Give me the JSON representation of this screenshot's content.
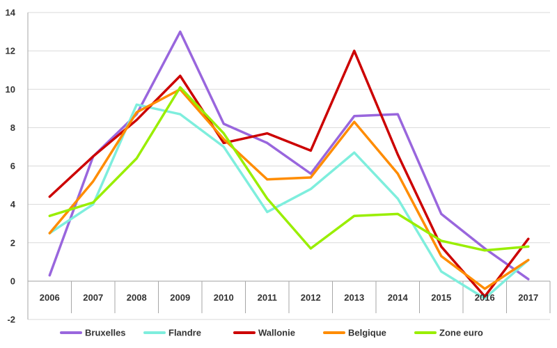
{
  "chart_data": {
    "type": "line",
    "title": "",
    "xlabel": "",
    "ylabel": "",
    "categories": [
      "2006",
      "2007",
      "2008",
      "2009",
      "2010",
      "2011",
      "2012",
      "2013",
      "2014",
      "2015",
      "2016",
      "2017"
    ],
    "ylim": [
      -2,
      14
    ],
    "yticks": [
      -2,
      0,
      2,
      4,
      6,
      8,
      10,
      12,
      14
    ],
    "grid": "horizontal",
    "legend_position": "bottom",
    "series": [
      {
        "name": "Bruxelles",
        "color": "#9966dd",
        "values": [
          0.3,
          6.5,
          8.7,
          13.0,
          8.2,
          7.2,
          5.6,
          8.6,
          8.7,
          3.5,
          1.7,
          0.1
        ]
      },
      {
        "name": "Flandre",
        "color": "#7eeedd",
        "values": [
          2.5,
          4.0,
          9.2,
          8.7,
          7.0,
          3.6,
          4.8,
          6.7,
          4.3,
          0.5,
          -0.9,
          1.1
        ]
      },
      {
        "name": "Wallonie",
        "color": "#cc0000",
        "values": [
          4.4,
          6.5,
          8.4,
          10.7,
          7.2,
          7.7,
          6.8,
          12.0,
          6.6,
          1.8,
          -0.8,
          2.2
        ]
      },
      {
        "name": "Belgique",
        "color": "#ff8c00",
        "values": [
          2.5,
          5.2,
          8.8,
          10.0,
          7.4,
          5.3,
          5.4,
          8.3,
          5.6,
          1.3,
          -0.4,
          1.1
        ]
      },
      {
        "name": "Zone euro",
        "color": "#99ee00",
        "values": [
          3.4,
          4.1,
          6.4,
          10.1,
          7.7,
          4.3,
          1.7,
          3.4,
          3.5,
          2.1,
          1.6,
          1.8
        ]
      }
    ]
  }
}
